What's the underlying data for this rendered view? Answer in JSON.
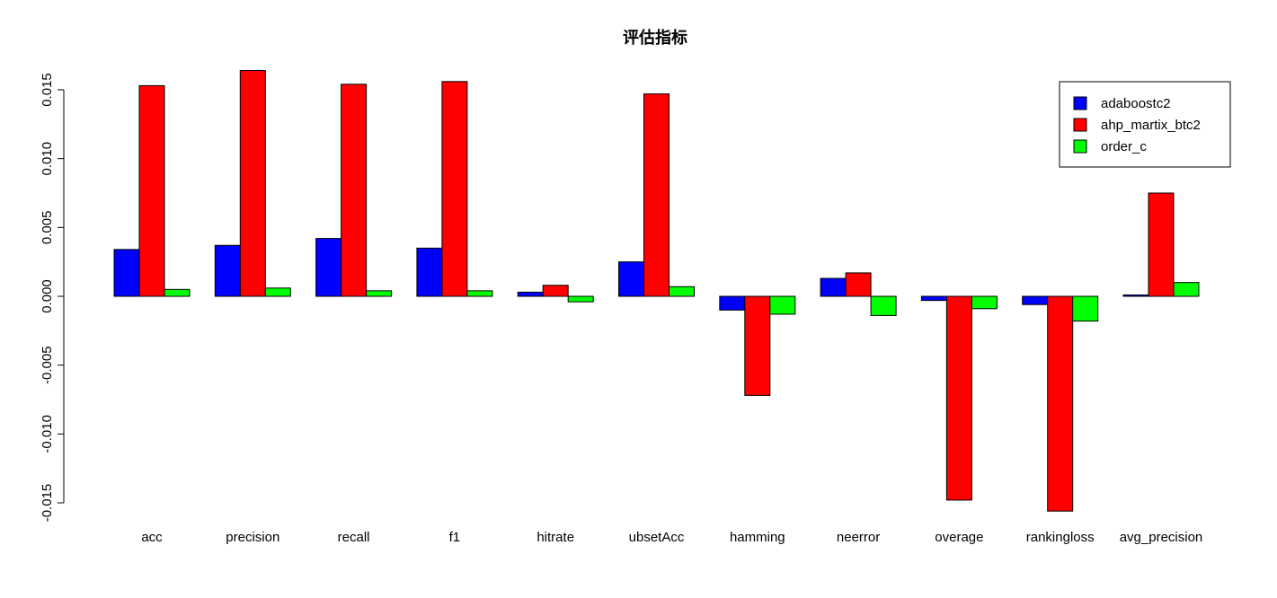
{
  "chart_data": {
    "type": "bar",
    "title": "评估指标",
    "xlabel": "",
    "ylabel": "",
    "categories": [
      "acc",
      "precision",
      "recall",
      "f1",
      "hitrate",
      "ubsetAcc",
      "hamming",
      "neerror",
      "overage",
      "rankingloss",
      "avg_precision"
    ],
    "series": [
      {
        "name": "adaboostc2",
        "color": "#0000ff",
        "values": [
          0.0034,
          0.0037,
          0.0042,
          0.0035,
          0.0003,
          0.0025,
          -0.001,
          0.0013,
          -0.0003,
          -0.0006,
          0.0001
        ]
      },
      {
        "name": "ahp_martix_btc2",
        "color": "#ff0000",
        "values": [
          0.0153,
          0.0164,
          0.0154,
          0.0156,
          0.0008,
          0.0147,
          -0.0072,
          0.0017,
          -0.0148,
          -0.0156,
          0.0075
        ]
      },
      {
        "name": "order_c",
        "color": "#00ff00",
        "values": [
          0.0005,
          0.0006,
          0.0004,
          0.0004,
          -0.0004,
          0.0007,
          -0.0013,
          -0.0014,
          -0.0009,
          -0.0018,
          0.001
        ]
      }
    ],
    "ylim": [
      -0.015,
      0.015
    ],
    "yticks": [
      "0.015",
      "0.010",
      "0.005",
      "0.000",
      "-0.005",
      "-0.010",
      "-0.015"
    ],
    "grid": false,
    "legend_position": "top-right"
  }
}
